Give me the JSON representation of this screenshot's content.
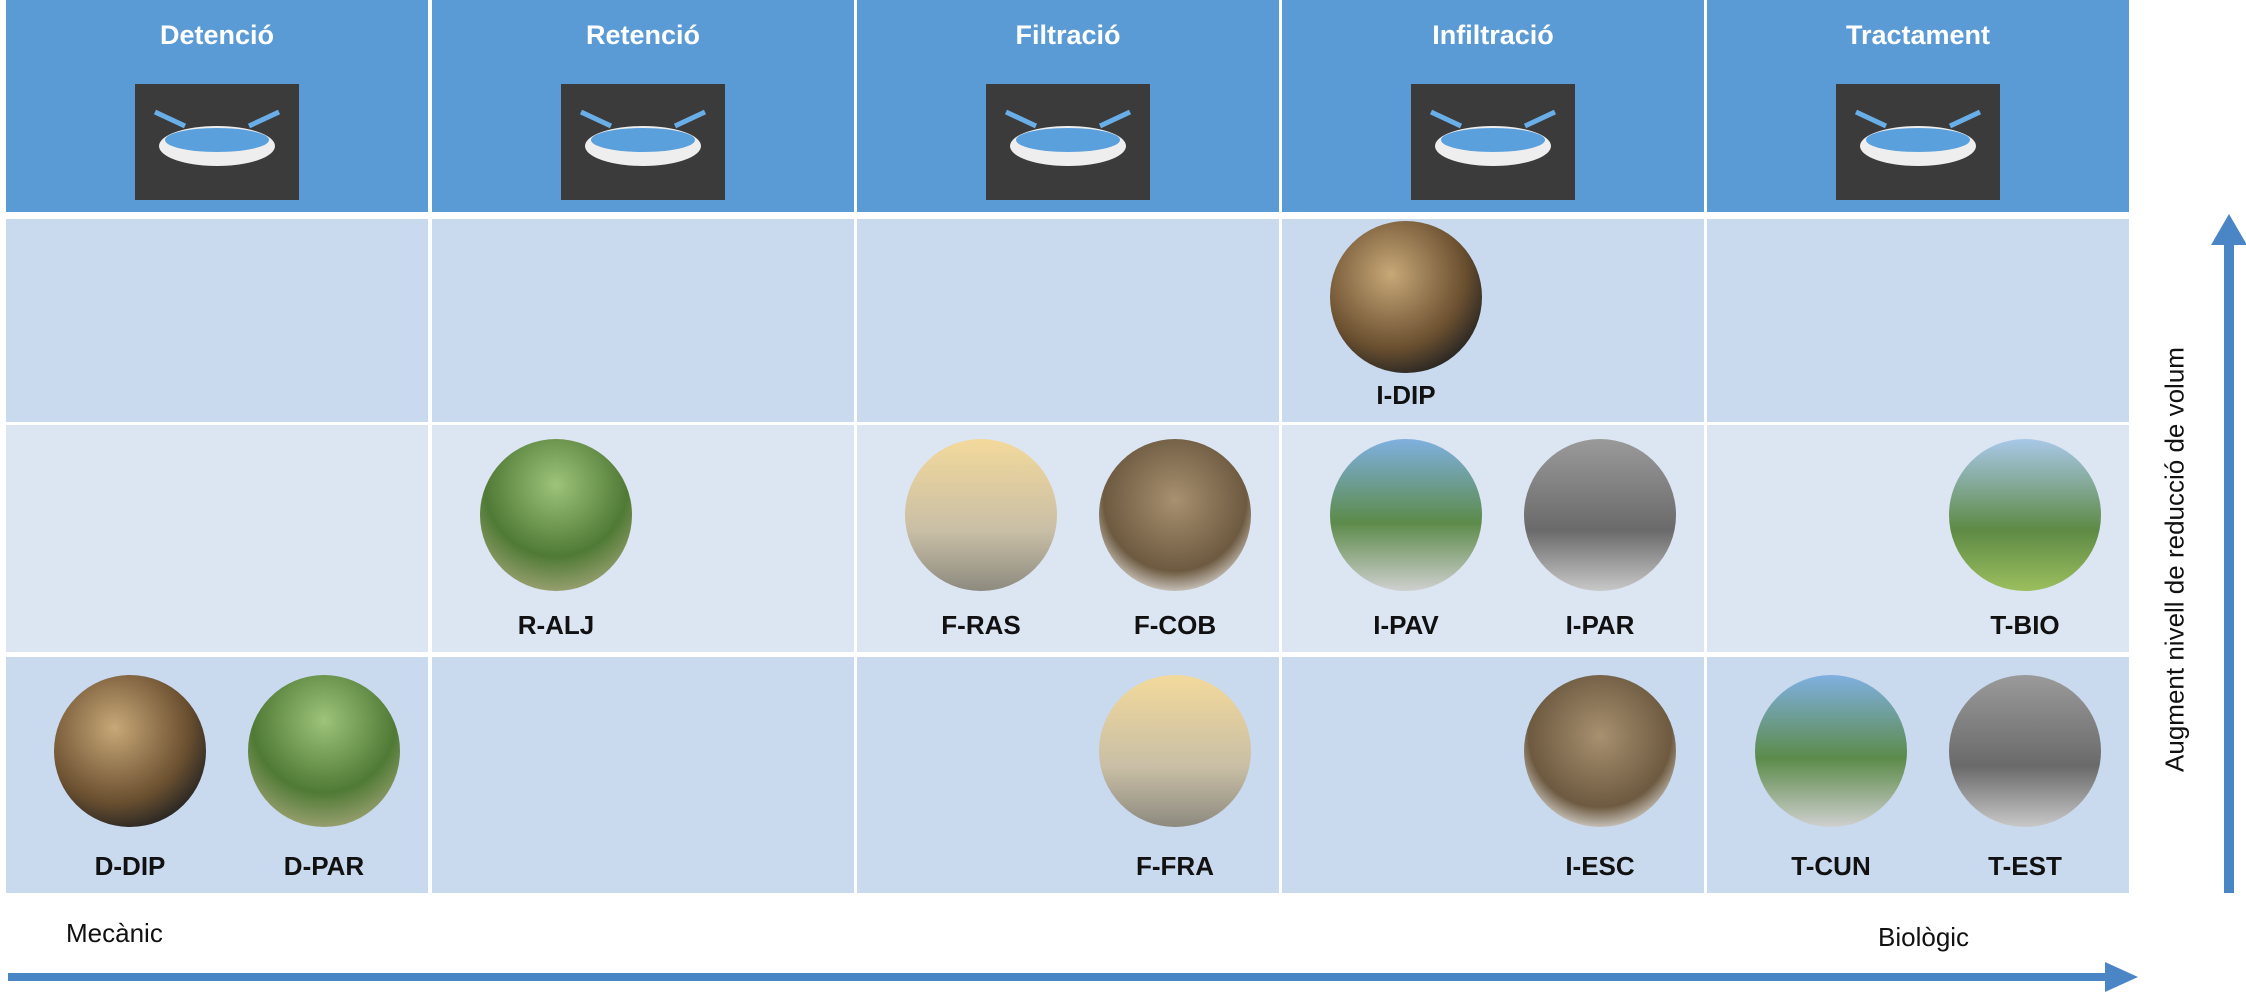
{
  "columns": [
    {
      "title": "Detenció"
    },
    {
      "title": "Retenció"
    },
    {
      "title": "Filtració"
    },
    {
      "title": "Infiltració"
    },
    {
      "title": "Tractament"
    }
  ],
  "rows": [
    {
      "cells": [
        {
          "items": []
        },
        {
          "items": []
        },
        {
          "items": []
        },
        {
          "items": [
            {
              "label": "I-DIP"
            }
          ]
        },
        {
          "items": []
        }
      ]
    },
    {
      "cells": [
        {
          "items": []
        },
        {
          "items": [
            {
              "label": "R-ALJ"
            }
          ]
        },
        {
          "items": [
            {
              "label": "F-RAS"
            },
            {
              "label": "F-COB"
            }
          ]
        },
        {
          "items": [
            {
              "label": "I-PAV"
            },
            {
              "label": "I-PAR"
            }
          ]
        },
        {
          "items": [
            {
              "label": "T-BIO"
            }
          ]
        }
      ]
    },
    {
      "cells": [
        {
          "items": [
            {
              "label": "D-DIP"
            },
            {
              "label": "D-PAR"
            }
          ]
        },
        {
          "items": []
        },
        {
          "items": [
            {
              "label": "F-FRA"
            }
          ]
        },
        {
          "items": [
            {
              "label": "I-ESC"
            }
          ]
        },
        {
          "items": [
            {
              "label": "T-CUN"
            },
            {
              "label": "T-EST"
            }
          ]
        }
      ]
    }
  ],
  "axis": {
    "x_start": "Mecànic",
    "x_end": "Biològic",
    "y_label": "Augment nivell de reducció de volum"
  }
}
